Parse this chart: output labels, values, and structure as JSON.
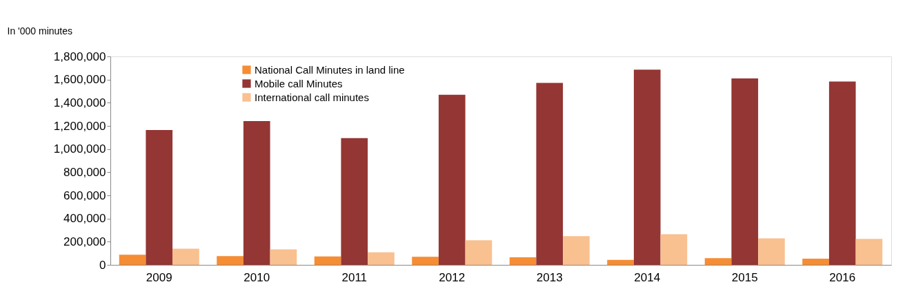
{
  "chart_data": {
    "type": "bar",
    "ylabel": "In  '000 minutes",
    "categories": [
      "2009",
      "2010",
      "2011",
      "2012",
      "2013",
      "2014",
      "2015",
      "2016"
    ],
    "series": [
      {
        "name": "National Call Minutes in land line",
        "color": "#f58d35",
        "values": [
          87000,
          76000,
          73000,
          70000,
          65000,
          43000,
          58000,
          53000
        ]
      },
      {
        "name": "Mobile call Minutes",
        "color": "#943634",
        "values": [
          1165000,
          1242000,
          1095000,
          1469000,
          1572000,
          1686000,
          1610000,
          1583000
        ]
      },
      {
        "name": "International call minutes",
        "color": "#f9c090",
        "values": [
          140000,
          134000,
          108000,
          212000,
          248000,
          265000,
          228000,
          225000
        ]
      }
    ],
    "ylim": [
      0,
      1800000
    ],
    "yticks": [
      0,
      {
        "value": 200000,
        "label": "200,000"
      },
      {
        "value": 400000,
        "label": "400,000"
      },
      {
        "value": 600000,
        "label": "600,000"
      },
      {
        "value": 800000,
        "label": "800,000"
      },
      {
        "value": 1000000,
        "label": "1,000,000"
      },
      {
        "value": 1200000,
        "label": "1,200,000"
      },
      {
        "value": 1400000,
        "label": "1,400,000"
      },
      {
        "value": 1600000,
        "label": "1,600,000"
      },
      {
        "value": 1800000,
        "label": "1,800,000"
      }
    ],
    "grid": false,
    "legend": "top left"
  }
}
